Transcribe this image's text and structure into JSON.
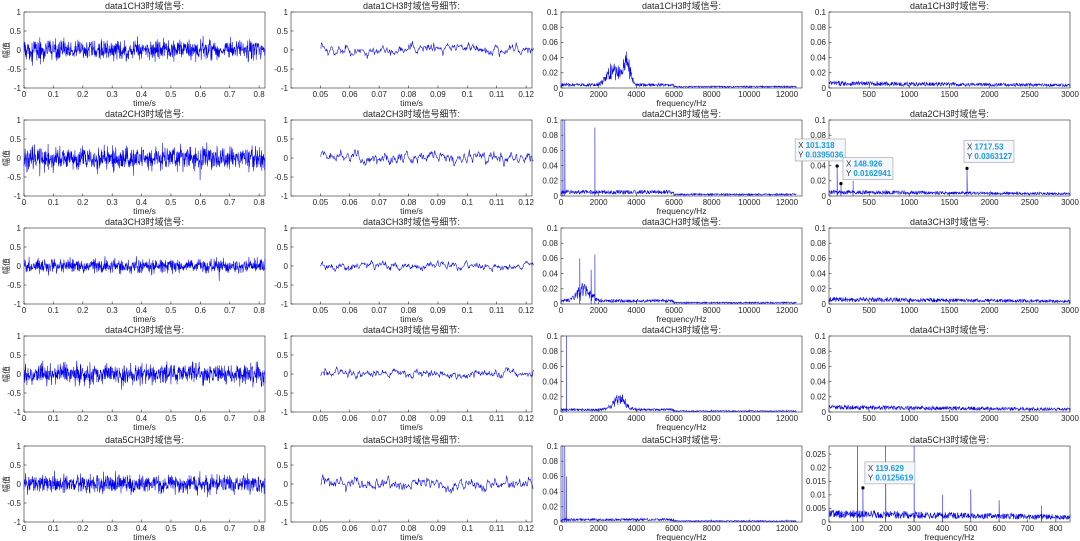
{
  "colors": {
    "signal": "#0000ee",
    "axis": "#262626",
    "tip_value": "#1a9be0",
    "tip_bg": "#f4f7fb",
    "tip_border": "#8c8c8c"
  },
  "chart_data": [
    {
      "type": "line",
      "row": 1,
      "col": 1,
      "title": "data1CH3时域信号:",
      "xlabel": "time/s",
      "ylabel": "幅值",
      "xlim": [
        0,
        0.82
      ],
      "ylim": [
        -1,
        1
      ],
      "xticks": [
        "0",
        "0.1",
        "0.2",
        "0.3",
        "0.4",
        "0.5",
        "0.6",
        "0.7",
        "0.8"
      ],
      "yticks": [
        "-1",
        "-0.5",
        "0",
        "0.5",
        "1"
      ],
      "kind": "time",
      "amplitude": 0.45
    },
    {
      "type": "line",
      "row": 1,
      "col": 2,
      "title": "data1CH3时域信号细节:",
      "xlabel": "time/s",
      "ylabel": "",
      "xlim": [
        0.04,
        0.122
      ],
      "ylim": [
        -1,
        1
      ],
      "xticks": [
        "0.05",
        "0.06",
        "0.07",
        "0.08",
        "0.09",
        "0.1",
        "0.11",
        "0.12"
      ],
      "yticks": [
        "-1",
        "-0.5",
        "0",
        "0.5",
        "1"
      ],
      "kind": "detail",
      "amplitude": 0.4
    },
    {
      "type": "line",
      "row": 1,
      "col": 3,
      "title": "data1CH3时域信号:",
      "xlabel": "frequency/Hz",
      "ylabel": "",
      "xlim": [
        0,
        12800
      ],
      "ylim": [
        0,
        0.1
      ],
      "xticks": [
        "0",
        "2000",
        "4000",
        "6000",
        "8000",
        "10000",
        "12000"
      ],
      "yticks": [
        "0",
        "0.02",
        "0.04",
        "0.06",
        "0.08",
        "0.1"
      ],
      "kind": "spectrum",
      "peaks": [
        [
          2800,
          0.025,
          500
        ],
        [
          3500,
          0.035,
          250
        ]
      ],
      "floor": 0.004
    },
    {
      "type": "line",
      "row": 1,
      "col": 4,
      "title": "data1CH3时域信号:",
      "xlabel": "",
      "ylabel": "",
      "xlim": [
        0,
        3000
      ],
      "ylim": [
        0,
        0.1
      ],
      "xticks": [
        "0",
        "500",
        "1000",
        "1500",
        "2000",
        "2500",
        "3000"
      ],
      "yticks": [
        "0",
        "0.02",
        "0.04",
        "0.06",
        "0.08",
        "0.1"
      ],
      "kind": "lowspec",
      "floor": 0.006
    },
    {
      "type": "line",
      "row": 2,
      "col": 1,
      "title": "data2CH3时域信号:",
      "xlabel": "time/s",
      "ylabel": "幅值",
      "xlim": [
        0,
        0.82
      ],
      "ylim": [
        -1,
        1
      ],
      "xticks": [
        "0",
        "0.1",
        "0.2",
        "0.3",
        "0.4",
        "0.5",
        "0.6",
        "0.7",
        "0.8"
      ],
      "yticks": [
        "-1",
        "-0.5",
        "0",
        "0.5",
        "1"
      ],
      "kind": "time",
      "amplitude": 0.5
    },
    {
      "type": "line",
      "row": 2,
      "col": 2,
      "title": "data2CH3时域信号细节:",
      "xlabel": "time/s",
      "ylabel": "",
      "xlim": [
        0.04,
        0.122
      ],
      "ylim": [
        -1,
        1
      ],
      "xticks": [
        "0.05",
        "0.06",
        "0.07",
        "0.08",
        "0.09",
        "0.1",
        "0.11",
        "0.12"
      ],
      "yticks": [
        "-1",
        "-0.5",
        "0",
        "0.5",
        "1"
      ],
      "kind": "detail",
      "amplitude": 0.45
    },
    {
      "type": "line",
      "row": 2,
      "col": 3,
      "title": "data2CH3时域信号:",
      "xlabel": "frequency/Hz",
      "ylabel": "",
      "xlim": [
        0,
        12800
      ],
      "ylim": [
        0,
        0.1
      ],
      "xticks": [
        "0",
        "2000",
        "4000",
        "6000",
        "8000",
        "10000",
        "12000"
      ],
      "yticks": [
        "0",
        "0.02",
        "0.04",
        "0.06",
        "0.08",
        "0.1"
      ],
      "kind": "spectrum",
      "spikes": [
        [
          100,
          0.1
        ],
        [
          200,
          0.1
        ],
        [
          1800,
          0.09
        ]
      ],
      "floor": 0.005
    },
    {
      "type": "line",
      "row": 2,
      "col": 4,
      "title": "data2CH3时域信号:",
      "xlabel": "",
      "ylabel": "",
      "xlim": [
        0,
        3000
      ],
      "ylim": [
        0,
        0.1
      ],
      "xticks": [
        "0",
        "500",
        "1000",
        "1500",
        "2000",
        "2500",
        "3000"
      ],
      "yticks": [
        "0",
        "0.02",
        "0.04",
        "0.06",
        "0.08",
        "0.1"
      ],
      "kind": "lowspec",
      "spikes": [
        [
          101.318,
          0.0395036
        ],
        [
          148.926,
          0.0162941
        ],
        [
          1717.53,
          0.0363127
        ],
        [
          300,
          0.02
        ]
      ],
      "floor": 0.005,
      "datatips": [
        {
          "x": "101.318",
          "y": "0.0395036"
        },
        {
          "x": "148.926",
          "y": "0.0162941"
        },
        {
          "x": "1717.53",
          "y": "0.0363127"
        }
      ]
    },
    {
      "type": "line",
      "row": 3,
      "col": 1,
      "title": "data3CH3时域信号:",
      "xlabel": "time/s",
      "ylabel": "幅值",
      "xlim": [
        0,
        0.82
      ],
      "ylim": [
        -1,
        1
      ],
      "xticks": [
        "0",
        "0.1",
        "0.2",
        "0.3",
        "0.4",
        "0.5",
        "0.6",
        "0.7",
        "0.8"
      ],
      "yticks": [
        "-1",
        "-0.5",
        "0",
        "0.5",
        "1"
      ],
      "kind": "time",
      "amplitude": 0.3
    },
    {
      "type": "line",
      "row": 3,
      "col": 2,
      "title": "data3CH3时域信号细节:",
      "xlabel": "time/s",
      "ylabel": "",
      "xlim": [
        0.04,
        0.122
      ],
      "ylim": [
        -1,
        1
      ],
      "xticks": [
        "0.05",
        "0.06",
        "0.07",
        "0.08",
        "0.09",
        "0.1",
        "0.11",
        "0.12"
      ],
      "yticks": [
        "-1",
        "-0.5",
        "0",
        "0.5",
        "1"
      ],
      "kind": "detail",
      "amplitude": 0.3
    },
    {
      "type": "line",
      "row": 3,
      "col": 3,
      "title": "data3CH3时域信号:",
      "xlabel": "frequency/Hz",
      "ylabel": "",
      "xlim": [
        0,
        12800
      ],
      "ylim": [
        0,
        0.1
      ],
      "xticks": [
        "0",
        "2000",
        "4000",
        "6000",
        "8000",
        "10000",
        "12000"
      ],
      "yticks": [
        "0",
        "0.02",
        "0.04",
        "0.06",
        "0.08",
        "0.1"
      ],
      "kind": "spectrum",
      "spikes": [
        [
          1000,
          0.06
        ],
        [
          1800,
          0.065
        ],
        [
          1600,
          0.045
        ]
      ],
      "peaks": [
        [
          1200,
          0.02,
          500
        ]
      ],
      "floor": 0.004
    },
    {
      "type": "line",
      "row": 3,
      "col": 4,
      "title": "data3CH3时域信号:",
      "xlabel": "",
      "ylabel": "",
      "xlim": [
        0,
        3000
      ],
      "ylim": [
        0,
        0.1
      ],
      "xticks": [
        "0",
        "500",
        "1000",
        "1500",
        "2000",
        "2500",
        "3000"
      ],
      "yticks": [
        "0",
        "0.02",
        "0.04",
        "0.06",
        "0.08",
        "0.1"
      ],
      "kind": "lowspec",
      "floor": 0.006
    },
    {
      "type": "line",
      "row": 4,
      "col": 1,
      "title": "data4CH3时域信号:",
      "xlabel": "time/s",
      "ylabel": "幅值",
      "xlim": [
        0,
        0.82
      ],
      "ylim": [
        -1,
        1
      ],
      "xticks": [
        "0",
        "0.1",
        "0.2",
        "0.3",
        "0.4",
        "0.5",
        "0.6",
        "0.7",
        "0.8"
      ],
      "yticks": [
        "-1",
        "-0.5",
        "0",
        "0.5",
        "1"
      ],
      "kind": "time",
      "amplitude": 0.45
    },
    {
      "type": "line",
      "row": 4,
      "col": 2,
      "title": "data4CH3时域信号细节:",
      "xlabel": "time/s",
      "ylabel": "",
      "xlim": [
        0.04,
        0.122
      ],
      "ylim": [
        -1,
        1
      ],
      "xticks": [
        "0.05",
        "0.06",
        "0.07",
        "0.08",
        "0.09",
        "0.1",
        "0.11",
        "0.12"
      ],
      "yticks": [
        "-1",
        "-0.5",
        "0",
        "0.5",
        "1"
      ],
      "kind": "detail",
      "amplitude": 0.35
    },
    {
      "type": "line",
      "row": 4,
      "col": 3,
      "title": "data4CH3时域信号:",
      "xlabel": "frequency/Hz",
      "ylabel": "",
      "xlim": [
        0,
        12800
      ],
      "ylim": [
        0,
        0.1
      ],
      "xticks": [
        "0",
        "2000",
        "4000",
        "6000",
        "8000",
        "10000",
        "12000"
      ],
      "yticks": [
        "0",
        "0.02",
        "0.04",
        "0.06",
        "0.08",
        "0.1"
      ],
      "kind": "spectrum",
      "spikes": [
        [
          300,
          0.1
        ]
      ],
      "peaks": [
        [
          3100,
          0.02,
          450
        ]
      ],
      "floor": 0.003
    },
    {
      "type": "line",
      "row": 4,
      "col": 4,
      "title": "data4CH3时域信号:",
      "xlabel": "",
      "ylabel": "",
      "xlim": [
        0,
        3000
      ],
      "ylim": [
        0,
        0.1
      ],
      "xticks": [
        "0",
        "500",
        "1000",
        "1500",
        "2000",
        "2500",
        "3000"
      ],
      "yticks": [
        "0",
        "0.02",
        "0.04",
        "0.06",
        "0.08",
        "0.1"
      ],
      "kind": "lowspec",
      "floor": 0.006
    },
    {
      "type": "line",
      "row": 5,
      "col": 1,
      "title": "data5CH3时域信号:",
      "xlabel": "time/s",
      "ylabel": "幅值",
      "xlim": [
        0,
        0.82
      ],
      "ylim": [
        -1,
        1
      ],
      "xticks": [
        "0",
        "0.1",
        "0.2",
        "0.3",
        "0.4",
        "0.5",
        "0.6",
        "0.7",
        "0.8"
      ],
      "yticks": [
        "-1",
        "-0.5",
        "0",
        "0.5",
        "1"
      ],
      "kind": "time",
      "amplitude": 0.4
    },
    {
      "type": "line",
      "row": 5,
      "col": 2,
      "title": "data5CH3时域信号细节:",
      "xlabel": "time/s",
      "ylabel": "",
      "xlim": [
        0.04,
        0.122
      ],
      "ylim": [
        -1,
        1
      ],
      "xticks": [
        "0.05",
        "0.06",
        "0.07",
        "0.08",
        "0.09",
        "0.1",
        "0.11",
        "0.12"
      ],
      "yticks": [
        "-1",
        "-0.5",
        "0",
        "0.5",
        "1"
      ],
      "kind": "detail",
      "amplitude": 0.45
    },
    {
      "type": "line",
      "row": 5,
      "col": 3,
      "title": "data5CH3时域信号:",
      "xlabel": "frequency/Hz",
      "ylabel": "",
      "xlim": [
        0,
        12800
      ],
      "ylim": [
        0,
        0.1
      ],
      "xticks": [
        "0",
        "2000",
        "4000",
        "6000",
        "8000",
        "10000",
        "12000"
      ],
      "yticks": [
        "0",
        "0.02",
        "0.04",
        "0.06",
        "0.08",
        "0.1"
      ],
      "kind": "spectrum",
      "spikes": [
        [
          100,
          0.1
        ],
        [
          200,
          0.1
        ],
        [
          300,
          0.06
        ]
      ],
      "floor": 0.003
    },
    {
      "type": "line",
      "row": 5,
      "col": 4,
      "title": "data5CH3时域信号:",
      "xlabel": "frequency/Hz",
      "ylabel": "",
      "xlim": [
        0,
        850
      ],
      "ylim": [
        0,
        0.028
      ],
      "xticks": [
        "0",
        "100",
        "200",
        "300",
        "400",
        "500",
        "600",
        "700",
        "800"
      ],
      "yticks": [
        "0",
        "0.005",
        "0.01",
        "0.015",
        "0.02",
        "0.025"
      ],
      "kind": "lowspec",
      "spikes": [
        [
          100,
          0.028
        ],
        [
          119.629,
          0.0125619
        ],
        [
          200,
          0.028
        ],
        [
          300,
          0.028
        ],
        [
          400,
          0.01
        ],
        [
          500,
          0.012
        ],
        [
          600,
          0.008
        ],
        [
          750,
          0.006
        ]
      ],
      "floor": 0.003,
      "datatips": [
        {
          "x": "119.629",
          "y": "0.0125619"
        }
      ]
    }
  ]
}
